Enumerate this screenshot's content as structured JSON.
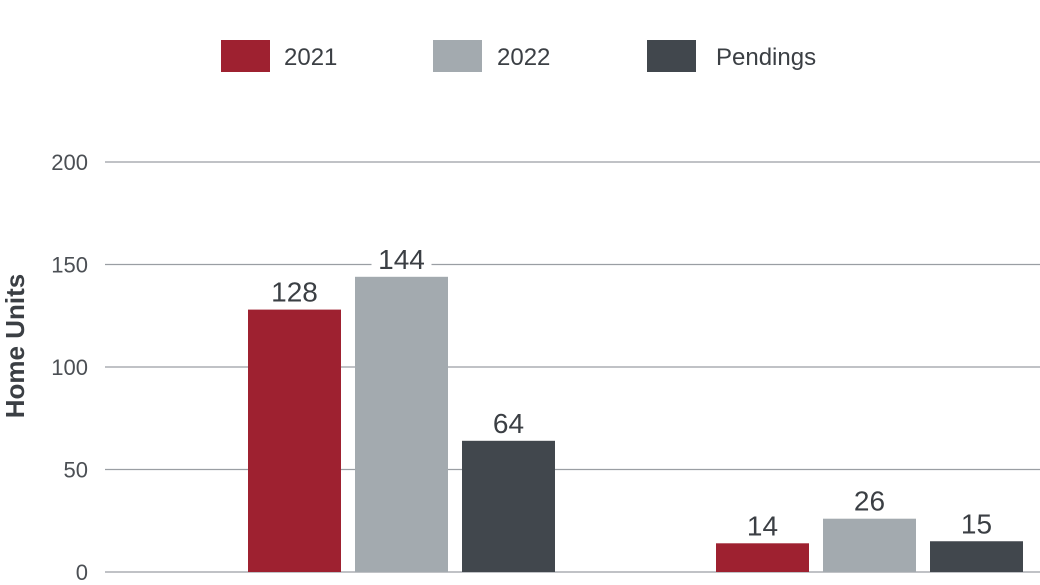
{
  "chart_data": {
    "type": "bar",
    "title": "",
    "xlabel": "",
    "ylabel": "Home Units",
    "ylim": [
      0,
      200
    ],
    "yticks": [
      0,
      50,
      100,
      150,
      200
    ],
    "grid": true,
    "legend_position": "top",
    "categories": [
      "",
      ""
    ],
    "series": [
      {
        "name": "2021",
        "color": "#9e2130",
        "values": [
          128,
          14
        ]
      },
      {
        "name": "2022",
        "color": "#a3aaaf",
        "values": [
          144,
          26
        ]
      },
      {
        "name": "Pendings",
        "color": "#41474d",
        "values": [
          64,
          15
        ]
      }
    ]
  }
}
